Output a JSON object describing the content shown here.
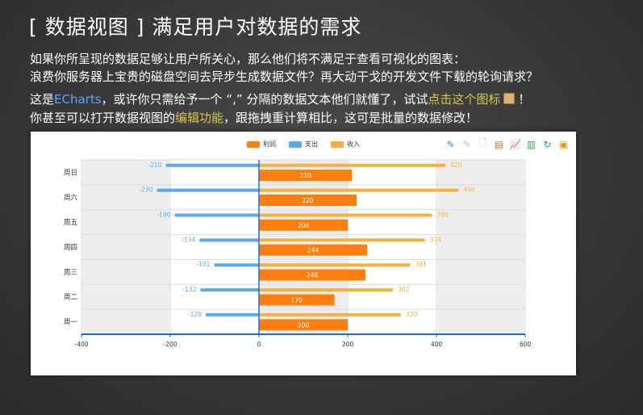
{
  "slide": {
    "title": "[ 数据视图 ] 满足用户对数据的需求",
    "line1": "如果你所呈现的数据足够让用户所关心，那么他们将不满足于查看可视化的图表：",
    "line2": "浪费你服务器上宝贵的磁盘空间去异步生成数据文件？再大动干戈的开发文件下载的轮询请求？",
    "line3_a": "这是",
    "line3_echarts": "ECharts",
    "line3_b": "，或许你只需给予一个 “,” 分隔的数据文本他们就懂了，试试",
    "line3_link": "点击这个图标",
    "line3_c": "！",
    "line4_a": "你甚至可以打开数据视图的",
    "line4_link": "编辑功能",
    "line4_b": "，跟拖拽重计算相比，这可是批量的数据修改！"
  },
  "toolbox": {
    "icons": [
      "mark-icon",
      "mark-undo-icon",
      "mark-clear-icon",
      "data-view-icon",
      "line-chart-icon",
      "bar-chart-icon",
      "restore-icon",
      "save-image-icon"
    ]
  },
  "colors": {
    "profit": "#ff7f0e",
    "expense": "#5aa8ee",
    "income": "#f6b13a"
  },
  "chart_data": {
    "type": "bar",
    "orientation": "horizontal",
    "categories": [
      "周一",
      "周二",
      "周三",
      "周四",
      "周五",
      "周六",
      "周日"
    ],
    "series": [
      {
        "name": "利润",
        "values": [
          200,
          170,
          240,
          244,
          200,
          220,
          210
        ]
      },
      {
        "name": "支出",
        "values": [
          -120,
          -132,
          -101,
          -134,
          -190,
          -230,
          -210
        ]
      },
      {
        "name": "收入",
        "values": [
          320,
          302,
          341,
          374,
          390,
          450,
          420
        ]
      }
    ],
    "xlim": [
      -400,
      600
    ],
    "xticks": [
      "-400",
      "-200",
      "0",
      "200",
      "400",
      "600"
    ],
    "legend": "top-center",
    "grid": true
  }
}
